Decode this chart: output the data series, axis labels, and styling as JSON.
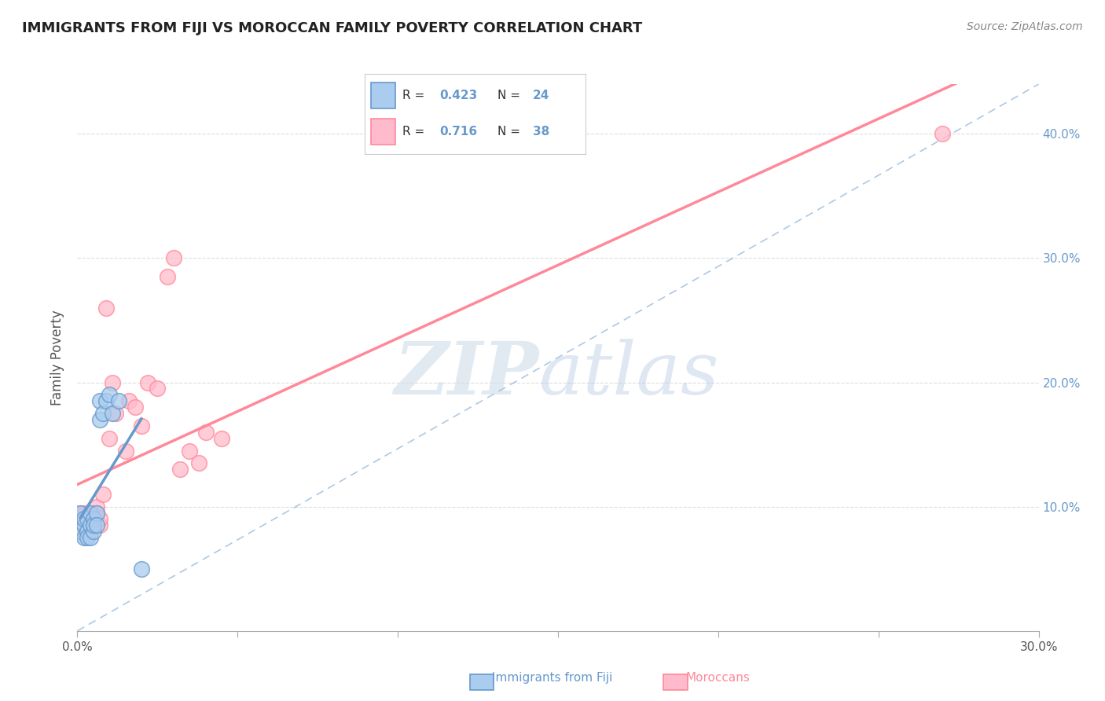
{
  "title": "IMMIGRANTS FROM FIJI VS MOROCCAN FAMILY POVERTY CORRELATION CHART",
  "source": "Source: ZipAtlas.com",
  "ylabel": "Family Poverty",
  "legend_label1": "Immigrants from Fiji",
  "legend_label2": "Moroccans",
  "r1": 0.423,
  "n1": 24,
  "r2": 0.716,
  "n2": 38,
  "xlim": [
    0.0,
    0.3
  ],
  "ylim": [
    0.0,
    0.44
  ],
  "xticks": [
    0.0,
    0.05,
    0.1,
    0.15,
    0.2,
    0.25,
    0.3
  ],
  "yticks": [
    0.1,
    0.2,
    0.3,
    0.4
  ],
  "color_fiji": "#6699CC",
  "color_moroccan": "#FF8899",
  "color_fiji_fill": "#aaccee",
  "color_moroccan_fill": "#ffbbcc",
  "watermark_zip": "ZIP",
  "watermark_atlas": "atlas",
  "fiji_x": [
    0.001,
    0.001,
    0.002,
    0.002,
    0.002,
    0.003,
    0.003,
    0.003,
    0.004,
    0.004,
    0.004,
    0.005,
    0.005,
    0.005,
    0.006,
    0.006,
    0.007,
    0.007,
    0.008,
    0.009,
    0.01,
    0.011,
    0.013,
    0.02
  ],
  "fiji_y": [
    0.08,
    0.095,
    0.085,
    0.09,
    0.075,
    0.09,
    0.08,
    0.075,
    0.095,
    0.085,
    0.075,
    0.08,
    0.09,
    0.085,
    0.095,
    0.085,
    0.185,
    0.17,
    0.175,
    0.185,
    0.19,
    0.175,
    0.185,
    0.05
  ],
  "moroccan_x": [
    0.001,
    0.001,
    0.001,
    0.002,
    0.002,
    0.002,
    0.003,
    0.003,
    0.003,
    0.004,
    0.004,
    0.004,
    0.005,
    0.005,
    0.005,
    0.006,
    0.006,
    0.007,
    0.007,
    0.008,
    0.009,
    0.01,
    0.011,
    0.012,
    0.015,
    0.016,
    0.018,
    0.02,
    0.022,
    0.025,
    0.028,
    0.03,
    0.032,
    0.035,
    0.038,
    0.04,
    0.045,
    0.27
  ],
  "moroccan_y": [
    0.08,
    0.09,
    0.095,
    0.085,
    0.09,
    0.095,
    0.08,
    0.085,
    0.09,
    0.08,
    0.085,
    0.09,
    0.085,
    0.09,
    0.095,
    0.095,
    0.1,
    0.085,
    0.09,
    0.11,
    0.26,
    0.155,
    0.2,
    0.175,
    0.145,
    0.185,
    0.18,
    0.165,
    0.2,
    0.195,
    0.285,
    0.3,
    0.13,
    0.145,
    0.135,
    0.16,
    0.155,
    0.4
  ]
}
